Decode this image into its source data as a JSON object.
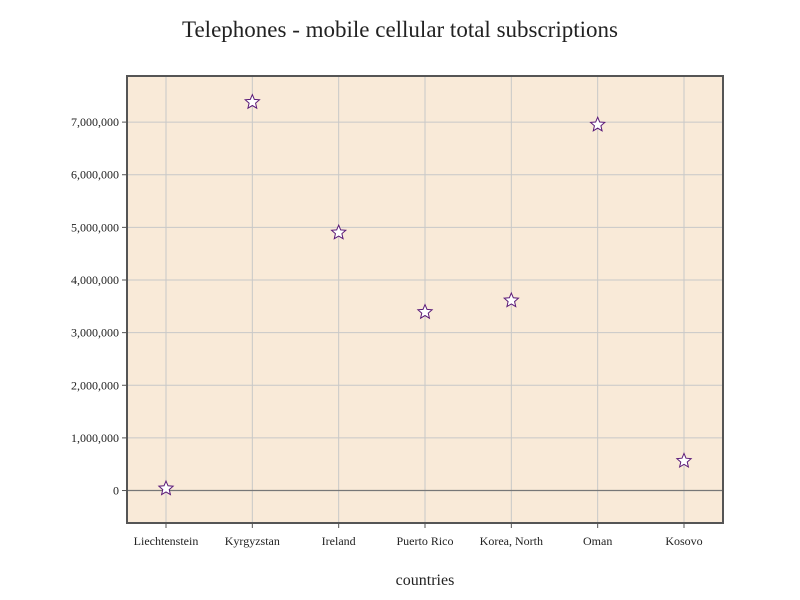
{
  "chart_data": {
    "type": "scatter",
    "title": "Telephones - mobile cellular total subscriptions",
    "xlabel": "countries",
    "ylabel": "",
    "categories": [
      "Liechtenstein",
      "Kyrgyzstan",
      "Ireland",
      "Puerto Rico",
      "Korea, North",
      "Oman",
      "Kosovo"
    ],
    "series": [
      {
        "values": [
          38000,
          7380000,
          4900000,
          3390000,
          3610000,
          6950000,
          562000
        ]
      }
    ],
    "ylim": [
      -560000,
      7800000
    ],
    "yticks": [
      0,
      1000000,
      2000000,
      3000000,
      4000000,
      5000000,
      6000000,
      7000000
    ],
    "ytick_labels": [
      "0",
      "1,000,000",
      "2,000,000",
      "3,000,000",
      "4,000,000",
      "5,000,000",
      "6,000,000",
      "7,000,000"
    ],
    "grid": true,
    "marker": "star",
    "colors": {
      "plot_background": "#f9ead8",
      "grid": "#c8c8c8",
      "zero_line": "#777777",
      "frame": "#555555",
      "marker_fill": "#ffffff",
      "marker_stroke": "#5a1a78"
    }
  }
}
